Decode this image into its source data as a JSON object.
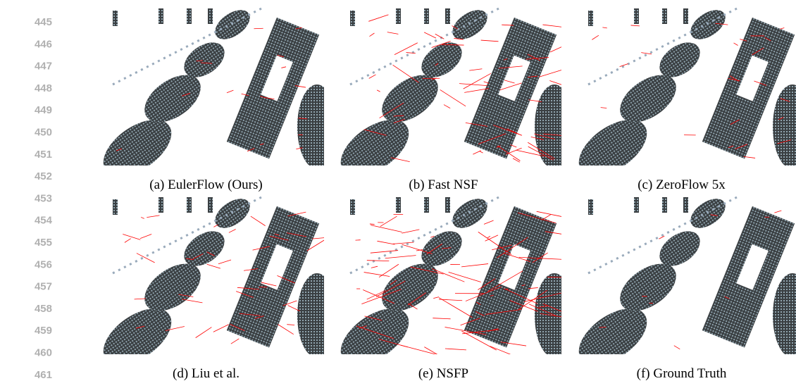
{
  "line_numbers": [
    445,
    446,
    447,
    448,
    449,
    450,
    451,
    452,
    453,
    454,
    455,
    456,
    457,
    458,
    459,
    460,
    461
  ],
  "panels": [
    {
      "caption": "(a) EulerFlow (Ours)"
    },
    {
      "caption": "(b) Fast NSF"
    },
    {
      "caption": "(c) ZeroFlow 5x"
    },
    {
      "caption": "(d) Liu et al."
    },
    {
      "caption": "(e) NSFP"
    },
    {
      "caption": "(f) Ground Truth"
    }
  ]
}
